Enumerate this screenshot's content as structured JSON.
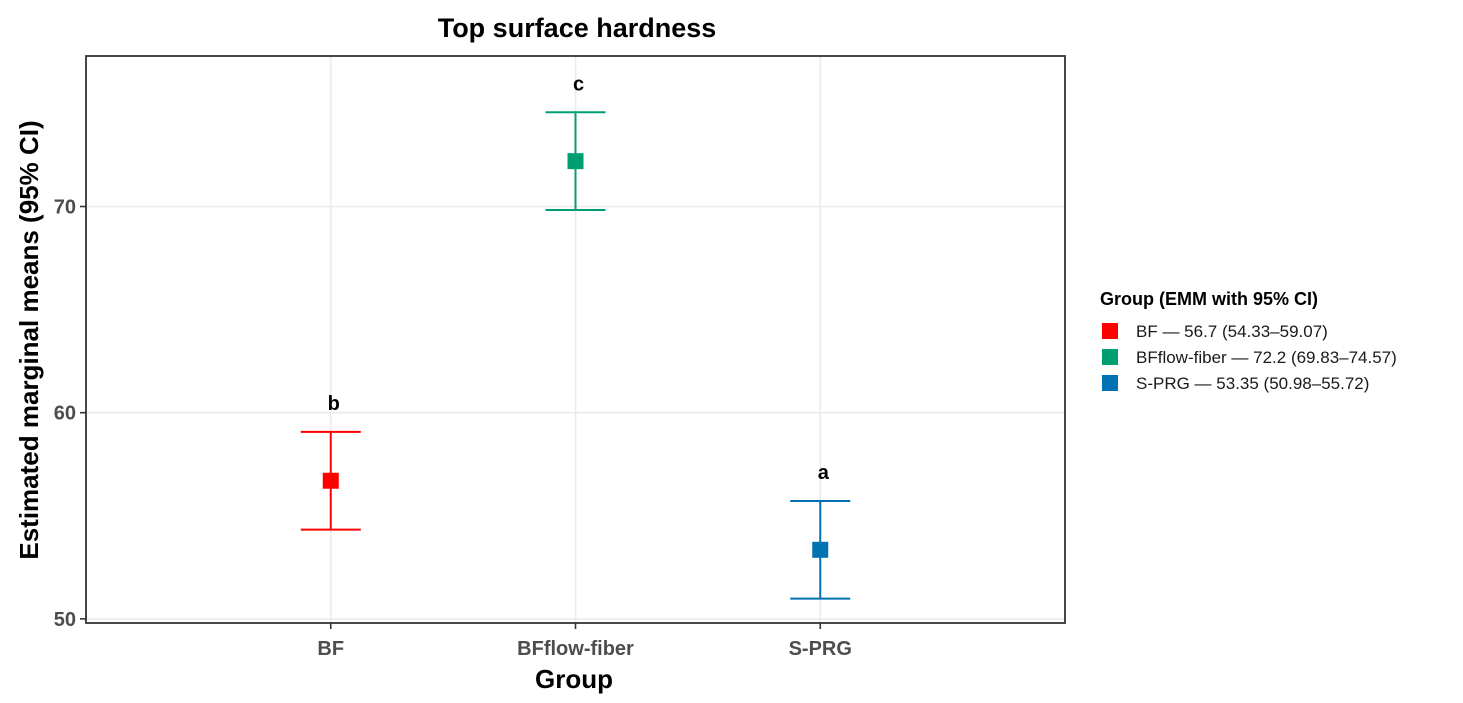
{
  "chart_data": {
    "type": "scatter",
    "title": "Top surface hardness",
    "xlabel": "Group",
    "ylabel": "Estimated marginal means (95% CI)",
    "ylim": [
      49.8,
      77.3
    ],
    "yticks": [
      50,
      60,
      70
    ],
    "grid": true,
    "categories": [
      "BF",
      "BFflow-fiber",
      "S-PRG"
    ],
    "points": [
      {
        "group": "BF",
        "emm": 56.7,
        "lower": 54.33,
        "upper": 59.07,
        "letter": "b",
        "color": "#ff0000"
      },
      {
        "group": "BFflow-fiber",
        "emm": 72.2,
        "lower": 69.83,
        "upper": 74.57,
        "letter": "c",
        "color": "#009e73"
      },
      {
        "group": "S-PRG",
        "emm": 53.35,
        "lower": 50.98,
        "upper": 55.72,
        "letter": "a",
        "color": "#0072b2"
      }
    ],
    "legend": {
      "placement": "right",
      "title": "Group (EMM with 95% CI)",
      "entries": [
        {
          "label": "BF — 56.7 (54.33–59.07)",
          "color": "#ff0000"
        },
        {
          "label": "BFflow-fiber — 72.2 (69.83–74.57)",
          "color": "#009e73"
        },
        {
          "label": "S-PRG — 53.35 (50.98–55.72)",
          "color": "#0072b2"
        }
      ]
    }
  }
}
